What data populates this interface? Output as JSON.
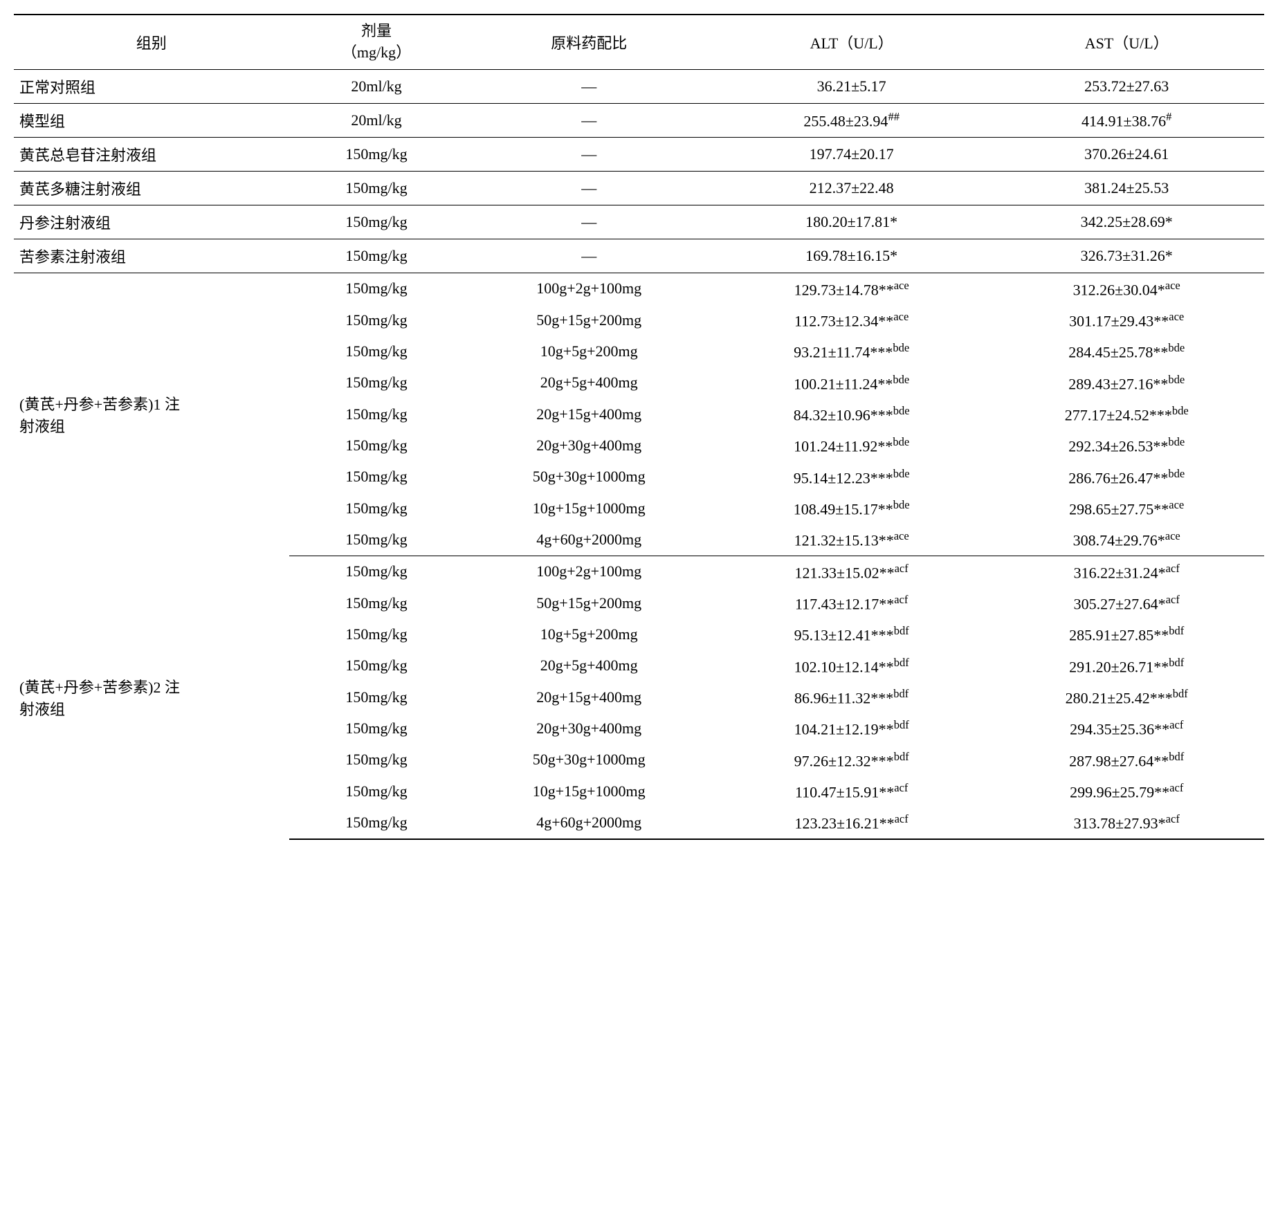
{
  "table": {
    "headers": {
      "group": "组别",
      "dose_line1": "剂量",
      "dose_line2": "（mg/kg）",
      "ratio": "原料药配比",
      "alt": "ALT（U/L）",
      "ast": "AST（U/L）"
    },
    "single_rows": [
      {
        "group": "正常对照组",
        "dose": "20ml/kg",
        "ratio": "—",
        "alt": "36.21±5.17",
        "alt_sup": "",
        "ast": "253.72±27.63",
        "ast_sup": ""
      },
      {
        "group": "模型组",
        "dose": "20ml/kg",
        "ratio": "—",
        "alt": "255.48±23.94",
        "alt_sup": "##",
        "ast": "414.91±38.76",
        "ast_sup": "#"
      },
      {
        "group": "黄芪总皂苷注射液组",
        "dose": "150mg/kg",
        "ratio": "—",
        "alt": "197.74±20.17",
        "alt_sup": "",
        "ast": "370.26±24.61",
        "ast_sup": ""
      },
      {
        "group": "黄芪多糖注射液组",
        "dose": "150mg/kg",
        "ratio": "—",
        "alt": "212.37±22.48",
        "alt_sup": "",
        "ast": "381.24±25.53",
        "ast_sup": ""
      },
      {
        "group": "丹参注射液组",
        "dose": "150mg/kg",
        "ratio": "—",
        "alt": "180.20±17.81*",
        "alt_sup": "",
        "ast": "342.25±28.69*",
        "ast_sup": ""
      },
      {
        "group": "苦参素注射液组",
        "dose": "150mg/kg",
        "ratio": "—",
        "alt": "169.78±16.15*",
        "alt_sup": "",
        "ast": "326.73±31.26*",
        "ast_sup": ""
      }
    ],
    "group1": {
      "label_line1": "(黄芪+丹参+苦参素)1 注",
      "label_line2": "射液组",
      "rows": [
        {
          "dose": "150mg/kg",
          "ratio": "100g+2g+100mg",
          "alt": "129.73±14.78**",
          "alt_sup": "ace",
          "ast": "312.26±30.04*",
          "ast_sup": "ace"
        },
        {
          "dose": "150mg/kg",
          "ratio": "50g+15g+200mg",
          "alt": "112.73±12.34**",
          "alt_sup": "ace",
          "ast": "301.17±29.43**",
          "ast_sup": "ace"
        },
        {
          "dose": "150mg/kg",
          "ratio": "10g+5g+200mg",
          "alt": "93.21±11.74***",
          "alt_sup": "bde",
          "ast": "284.45±25.78**",
          "ast_sup": "bde"
        },
        {
          "dose": "150mg/kg",
          "ratio": "20g+5g+400mg",
          "alt": "100.21±11.24**",
          "alt_sup": "bde",
          "ast": "289.43±27.16**",
          "ast_sup": "bde"
        },
        {
          "dose": "150mg/kg",
          "ratio": "20g+15g+400mg",
          "alt": "84.32±10.96***",
          "alt_sup": "bde",
          "ast": "277.17±24.52***",
          "ast_sup": "bde"
        },
        {
          "dose": "150mg/kg",
          "ratio": "20g+30g+400mg",
          "alt": "101.24±11.92**",
          "alt_sup": "bde",
          "ast": "292.34±26.53**",
          "ast_sup": "bde"
        },
        {
          "dose": "150mg/kg",
          "ratio": "50g+30g+1000mg",
          "alt": "95.14±12.23***",
          "alt_sup": "bde",
          "ast": "286.76±26.47**",
          "ast_sup": "bde"
        },
        {
          "dose": "150mg/kg",
          "ratio": "10g+15g+1000mg",
          "alt": "108.49±15.17**",
          "alt_sup": "bde",
          "ast": "298.65±27.75**",
          "ast_sup": "ace"
        },
        {
          "dose": "150mg/kg",
          "ratio": "4g+60g+2000mg",
          "alt": "121.32±15.13**",
          "alt_sup": "ace",
          "ast": "308.74±29.76*",
          "ast_sup": "ace"
        }
      ]
    },
    "group2": {
      "label_line1": "(黄芪+丹参+苦参素)2 注",
      "label_line2": "射液组",
      "rows": [
        {
          "dose": "150mg/kg",
          "ratio": "100g+2g+100mg",
          "alt": "121.33±15.02**",
          "alt_sup": "acf",
          "ast": "316.22±31.24*",
          "ast_sup": "acf"
        },
        {
          "dose": "150mg/kg",
          "ratio": "50g+15g+200mg",
          "alt": "117.43±12.17**",
          "alt_sup": "acf",
          "ast": "305.27±27.64*",
          "ast_sup": "acf"
        },
        {
          "dose": "150mg/kg",
          "ratio": "10g+5g+200mg",
          "alt": "95.13±12.41***",
          "alt_sup": "bdf",
          "ast": "285.91±27.85**",
          "ast_sup": "bdf"
        },
        {
          "dose": "150mg/kg",
          "ratio": "20g+5g+400mg",
          "alt": "102.10±12.14**",
          "alt_sup": "bdf",
          "ast": "291.20±26.71**",
          "ast_sup": "bdf"
        },
        {
          "dose": "150mg/kg",
          "ratio": "20g+15g+400mg",
          "alt": "86.96±11.32***",
          "alt_sup": "bdf",
          "ast": "280.21±25.42***",
          "ast_sup": "bdf"
        },
        {
          "dose": "150mg/kg",
          "ratio": "20g+30g+400mg",
          "alt": "104.21±12.19**",
          "alt_sup": "bdf",
          "ast": "294.35±25.36**",
          "ast_sup": "acf"
        },
        {
          "dose": "150mg/kg",
          "ratio": "50g+30g+1000mg",
          "alt": "97.26±12.32***",
          "alt_sup": "bdf",
          "ast": "287.98±27.64**",
          "ast_sup": "bdf"
        },
        {
          "dose": "150mg/kg",
          "ratio": "10g+15g+1000mg",
          "alt": "110.47±15.91**",
          "alt_sup": "acf",
          "ast": "299.96±25.79**",
          "ast_sup": "acf"
        },
        {
          "dose": "150mg/kg",
          "ratio": "4g+60g+2000mg",
          "alt": "123.23±16.21**",
          "alt_sup": "acf",
          "ast": "313.78±27.93*",
          "ast_sup": "acf"
        }
      ]
    },
    "col_widths": [
      "22%",
      "14%",
      "20%",
      "22%",
      "22%"
    ]
  },
  "style": {
    "font_size": 22,
    "text_color": "#000000",
    "background_color": "#ffffff",
    "border_color": "#000000"
  }
}
